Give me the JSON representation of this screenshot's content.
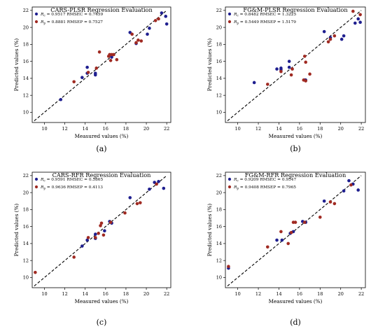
{
  "colors": {
    "calibration": "#1f1f8f",
    "prediction": "#a02a22",
    "fit_line": "#000000",
    "axes": "#000000"
  },
  "chart_data": [
    {
      "type": "scatter",
      "title": "CARS-PLSR Regression Evaluation",
      "xlabel": "Measured values (%)",
      "ylabel": "Predicted values (%)",
      "panel_label": "(a)",
      "xlim": [
        8.8,
        22.4
      ],
      "ylim": [
        8.8,
        22.4
      ],
      "xticks": [
        10,
        12,
        14,
        16,
        18,
        20,
        22
      ],
      "yticks": [
        10,
        12,
        14,
        16,
        18,
        20,
        22
      ],
      "legend": {
        "position": "top-left",
        "calibration_label": "R",
        "calibration_sub": "c",
        "calibration_metric": "= 0.9517 RMSEC = 0.7459",
        "prediction_label": "R",
        "prediction_sub": "p",
        "prediction_metric": "= 0.8881 RMSEP = 0.7527"
      },
      "series": [
        {
          "role": "calibration",
          "points": [
            [
              11.6,
              11.5
            ],
            [
              13.7,
              14.1
            ],
            [
              14.2,
              15.3
            ],
            [
              14.2,
              14.6
            ],
            [
              15.0,
              14.6
            ],
            [
              15.0,
              14.4
            ],
            [
              16.6,
              16.7
            ],
            [
              16.6,
              16.5
            ],
            [
              18.4,
              19.4
            ],
            [
              19.0,
              18.1
            ],
            [
              20.1,
              19.2
            ],
            [
              20.3,
              19.9
            ],
            [
              21.5,
              21.7
            ],
            [
              22.0,
              20.4
            ],
            [
              21.9,
              21.3
            ]
          ]
        },
        {
          "role": "prediction",
          "points": [
            [
              12.9,
              13.6
            ],
            [
              14.3,
              14.7
            ],
            [
              15.1,
              15.2
            ],
            [
              15.4,
              17.1
            ],
            [
              16.3,
              16.6
            ],
            [
              16.4,
              16.8
            ],
            [
              16.5,
              16.1
            ],
            [
              16.6,
              16.8
            ],
            [
              16.8,
              16.8
            ],
            [
              17.1,
              16.2
            ],
            [
              18.6,
              19.2
            ],
            [
              19.0,
              18.2
            ],
            [
              19.2,
              18.5
            ],
            [
              19.5,
              18.4
            ],
            [
              20.9,
              20.8
            ],
            [
              21.2,
              21.0
            ]
          ]
        }
      ]
    },
    {
      "type": "scatter",
      "title": "FG&M-PLSR Regression Evaluation",
      "xlabel": "Measured values (%)",
      "ylabel": "Predicted values (%)",
      "panel_label": "(b)",
      "xlim": [
        8.8,
        22.4
      ],
      "ylim": [
        8.8,
        22.4
      ],
      "xticks": [
        10,
        12,
        14,
        16,
        18,
        20,
        22
      ],
      "yticks": [
        10,
        12,
        14,
        16,
        18,
        20,
        22
      ],
      "legend": {
        "position": "top-left",
        "calibration_label": "R",
        "calibration_sub": "c",
        "calibration_metric": "= 0.8482 RMSEC = 1.3225",
        "prediction_label": "R",
        "prediction_sub": "p",
        "prediction_metric": "= 0.5449 RMSEP = 1.5179"
      },
      "series": [
        {
          "role": "calibration",
          "points": [
            [
              11.6,
              13.5
            ],
            [
              13.8,
              15.1
            ],
            [
              14.2,
              15.0
            ],
            [
              14.2,
              15.2
            ],
            [
              15.0,
              16.0
            ],
            [
              15.0,
              15.3
            ],
            [
              16.5,
              13.8
            ],
            [
              16.6,
              13.8
            ],
            [
              18.4,
              19.5
            ],
            [
              19.0,
              18.8
            ],
            [
              20.1,
              18.6
            ],
            [
              20.3,
              19.0
            ],
            [
              21.4,
              20.5
            ],
            [
              21.7,
              21.0
            ],
            [
              21.9,
              20.6
            ]
          ]
        },
        {
          "role": "prediction",
          "points": [
            [
              12.9,
              13.3
            ],
            [
              14.2,
              14.8
            ],
            [
              15.2,
              14.4
            ],
            [
              15.3,
              15.1
            ],
            [
              16.4,
              13.8
            ],
            [
              16.5,
              16.6
            ],
            [
              16.6,
              13.7
            ],
            [
              16.6,
              15.9
            ],
            [
              17.0,
              14.5
            ],
            [
              18.8,
              18.3
            ],
            [
              19.0,
              18.6
            ],
            [
              19.4,
              19.0
            ],
            [
              21.9,
              21.5
            ],
            [
              21.2,
              21.9
            ]
          ]
        }
      ]
    },
    {
      "type": "scatter",
      "title": "CARS-RFR Regression Evaluation",
      "xlabel": "Measured values (%)",
      "ylabel": "Predicted values (%)",
      "panel_label": "(c)",
      "xlim": [
        8.8,
        22.4
      ],
      "ylim": [
        8.8,
        22.4
      ],
      "xticks": [
        10,
        12,
        14,
        16,
        18,
        20,
        22
      ],
      "yticks": [
        10,
        12,
        14,
        16,
        18,
        20,
        22
      ],
      "legend": {
        "position": "top-left",
        "calibration_label": "R",
        "calibration_sub": "c",
        "calibration_metric": "= 0.9591 RMSEC = 0.5865",
        "prediction_label": "R",
        "prediction_sub": "p",
        "prediction_metric": "= 0.9636 RMSEP = 0.4113"
      },
      "series": [
        {
          "role": "calibration",
          "points": [
            [
              13.7,
              13.7
            ],
            [
              14.2,
              14.4
            ],
            [
              15.0,
              15.1
            ],
            [
              15.0,
              14.6
            ],
            [
              15.9,
              15.5
            ],
            [
              16.4,
              16.6
            ],
            [
              16.6,
              16.4
            ],
            [
              18.4,
              19.4
            ],
            [
              20.3,
              20.4
            ],
            [
              20.8,
              21.2
            ],
            [
              21.2,
              21.3
            ],
            [
              21.7,
              20.5
            ]
          ]
        },
        {
          "role": "prediction",
          "points": [
            [
              9.1,
              10.6
            ],
            [
              12.9,
              12.4
            ],
            [
              14.3,
              14.7
            ],
            [
              15.0,
              14.7
            ],
            [
              15.3,
              15.2
            ],
            [
              15.5,
              16.1
            ],
            [
              15.6,
              16.4
            ],
            [
              15.8,
              15.0
            ],
            [
              16.5,
              16.5
            ],
            [
              17.9,
              17.6
            ],
            [
              19.1,
              18.7
            ],
            [
              19.4,
              18.8
            ],
            [
              21.0,
              21.0
            ]
          ]
        }
      ]
    },
    {
      "type": "scatter",
      "title": "FG&M-RFR Regression Evaluation",
      "xlabel": "Measured values (%)",
      "ylabel": "Predicted values (%)",
      "panel_label": "(d)",
      "xlim": [
        8.8,
        22.4
      ],
      "ylim": [
        8.8,
        22.4
      ],
      "xticks": [
        10,
        12,
        14,
        16,
        18,
        20,
        22
      ],
      "yticks": [
        10,
        12,
        14,
        16,
        18,
        20,
        22
      ],
      "legend": {
        "position": "top-left",
        "calibration_label": "R",
        "calibration_sub": "c",
        "calibration_metric": "= 0.9209 RMSEC = 0.9547",
        "prediction_label": "R",
        "prediction_sub": "p",
        "prediction_metric": "= 0.9408 RMSEP = 0.7965"
      },
      "series": [
        {
          "role": "calibration",
          "points": [
            [
              9.1,
              11.1
            ],
            [
              13.8,
              14.4
            ],
            [
              14.3,
              14.4
            ],
            [
              15.1,
              15.2
            ],
            [
              15.4,
              15.4
            ],
            [
              16.3,
              16.6
            ],
            [
              16.6,
              16.5
            ],
            [
              18.4,
              19.0
            ],
            [
              20.3,
              20.2
            ],
            [
              20.8,
              21.4
            ],
            [
              21.2,
              21.0
            ],
            [
              21.7,
              20.3
            ]
          ]
        },
        {
          "role": "prediction",
          "points": [
            [
              9.1,
              11.3
            ],
            [
              12.9,
              13.6
            ],
            [
              14.2,
              15.4
            ],
            [
              14.9,
              14.0
            ],
            [
              15.2,
              15.3
            ],
            [
              15.4,
              16.5
            ],
            [
              15.6,
              16.5
            ],
            [
              16.5,
              16.5
            ],
            [
              18.0,
              17.1
            ],
            [
              19.0,
              18.9
            ],
            [
              19.4,
              18.7
            ],
            [
              21.0,
              20.9
            ]
          ]
        }
      ]
    }
  ]
}
